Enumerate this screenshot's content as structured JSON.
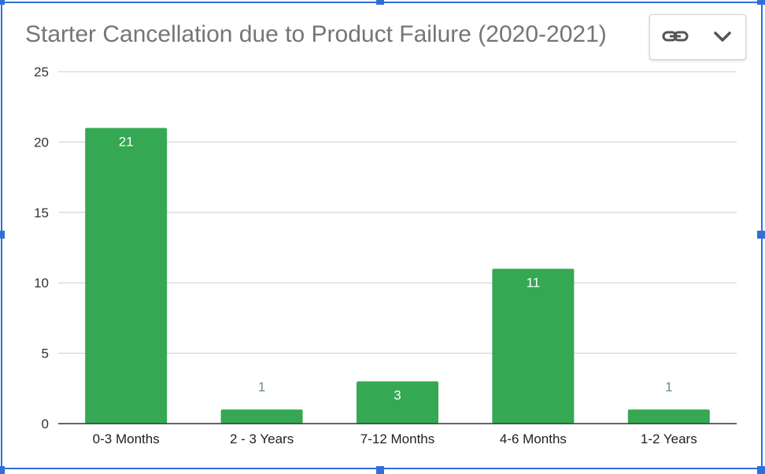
{
  "chart_data": {
    "type": "bar",
    "title": "Starter Cancellation due to Product Failure (2020-2021)",
    "categories": [
      "0-3 Months",
      "2 - 3 Years",
      "7-12 Months",
      "4-6 Months",
      "1-2 Years"
    ],
    "values": [
      21,
      1,
      3,
      11,
      1
    ],
    "data_labels": [
      "21",
      "1",
      "3",
      "11",
      "1"
    ],
    "yticks": [
      "0",
      "5",
      "10",
      "15",
      "20",
      "25"
    ],
    "ylim": [
      0,
      25
    ],
    "xlabel": "",
    "ylabel": "",
    "grid": true,
    "legend": "none",
    "colors": {
      "bar": "#34a853",
      "gridline": "#cccccc",
      "axis": "#333333",
      "selection": "#2f6fd8"
    }
  },
  "toolbar": {
    "link_icon": "link-icon",
    "menu_icon": "chevron-down-icon"
  }
}
